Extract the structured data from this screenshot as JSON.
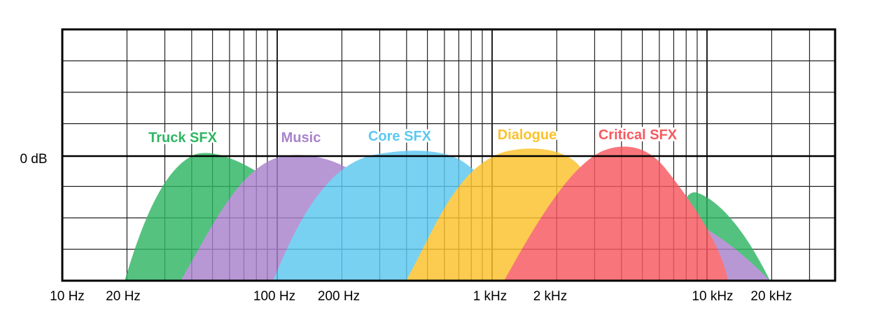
{
  "axis": {
    "level_label": "0 dB",
    "frequency_labels": [
      "10 Hz",
      "20 Hz",
      "100 Hz",
      "200 Hz",
      "1 kHz",
      "2 kHz",
      "10 kHz",
      "20 kHz"
    ]
  },
  "bands": [
    {
      "label": "Truck SFX"
    },
    {
      "label": "Music"
    },
    {
      "label": "Core SFX"
    },
    {
      "label": "Dialogue"
    },
    {
      "label": "Critical SFX"
    }
  ]
}
